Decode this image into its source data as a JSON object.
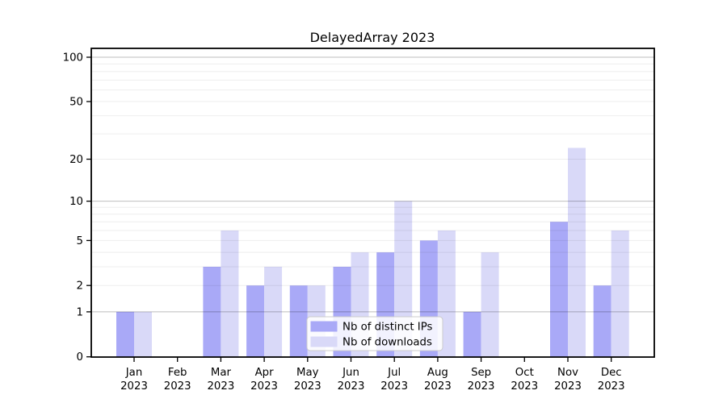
{
  "figure": {
    "background": "#ffffff"
  },
  "chart_data": {
    "type": "bar",
    "title": "DelayedArray 2023",
    "categories": [
      "Jan",
      "Feb",
      "Mar",
      "Apr",
      "May",
      "Jun",
      "Jul",
      "Aug",
      "Sep",
      "Oct",
      "Nov",
      "Dec"
    ],
    "x_year_label": "2023",
    "series": [
      {
        "name": "Nb of distinct IPs",
        "color": "#a9a9f7",
        "values": [
          1,
          0,
          3,
          2,
          2,
          3,
          4,
          5,
          1,
          0,
          7,
          2
        ]
      },
      {
        "name": "Nb of downloads",
        "color": "#d9d9f8",
        "values": [
          1,
          0,
          6,
          3,
          2,
          4,
          10,
          6,
          4,
          0,
          24,
          6
        ]
      }
    ],
    "y_axis": {
      "scale": "log1p",
      "ticks": [
        0,
        1,
        2,
        5,
        10,
        20,
        50,
        100
      ],
      "limits": [
        0,
        100
      ]
    },
    "gridlines": {
      "major": [
        1,
        10,
        100
      ],
      "minor": [
        2,
        3,
        4,
        5,
        6,
        7,
        8,
        9,
        20,
        30,
        40,
        50,
        60,
        70,
        80,
        90
      ],
      "major_color": "rgba(0,0,0,0.26)",
      "minor_color": "rgba(0,0,0,0.07)"
    },
    "legend": {
      "position": "lower center"
    },
    "grid": true
  },
  "colors": {
    "axis": "#000000",
    "text": "#000000",
    "legend_border": "#cccccc",
    "legend_bg": "#ffffff"
  }
}
